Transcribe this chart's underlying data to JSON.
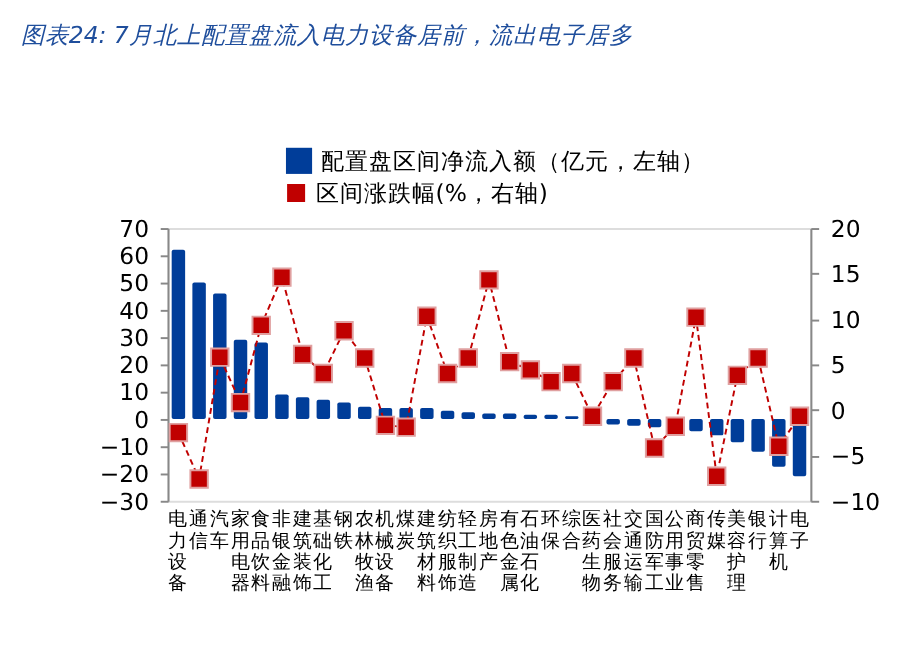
{
  "chart_data": {
    "type": "bar",
    "title": "图表24: 7月北上配置盘流入电力设备居前，流出电子居多",
    "categories": [
      "电力设备",
      "通信",
      "汽车",
      "家用电器",
      "食品饮料",
      "非银金融",
      "建筑装饰",
      "基础化工",
      "钢铁",
      "农林牧渔",
      "机械设备",
      "煤炭",
      "建筑材料",
      "纺织服饰",
      "轻工制造",
      "房地产",
      "有色金属",
      "石油石化",
      "环保",
      "综合",
      "医药生物",
      "社会服务",
      "交通运输",
      "国防军工",
      "公用事业",
      "商贸零售",
      "传媒",
      "美容护理",
      "银行",
      "计算机",
      "电子"
    ],
    "series": [
      {
        "name": "配置盘区间净流入额（亿元，左轴）",
        "color": "#003d99",
        "values": [
          62,
          50,
          46,
          29,
          28,
          9,
          8,
          7,
          6,
          4.5,
          4,
          4,
          4,
          3,
          2.5,
          2,
          2,
          1.5,
          1.5,
          1,
          null,
          -2,
          -2.5,
          -3,
          null,
          -4.5,
          -6,
          -8.5,
          -12,
          -17.5,
          -21
        ]
      },
      {
        "name": "区间涨跌幅(%，右轴)",
        "color": "#c00000",
        "type": "line",
        "axis": "y2",
        "marker": "square",
        "line_style": "dashed",
        "values": [
          -2.5,
          -7.6,
          5.8,
          0.8,
          9.3,
          14.6,
          6.1,
          4.0,
          8.7,
          5.7,
          -1.7,
          -1.9,
          10.3,
          4.0,
          5.7,
          14.3,
          5.3,
          4.4,
          3.1,
          4.0,
          -0.7,
          3.1,
          5.7,
          -4.2,
          -1.8,
          10.2,
          -7.3,
          3.8,
          5.7,
          -4.0,
          -0.7
        ]
      }
    ],
    "ylim": [
      -30,
      70
    ],
    "yticks": [
      -30,
      -20,
      -10,
      0,
      10,
      20,
      30,
      40,
      50,
      60,
      70
    ],
    "y2lim": [
      -10,
      20
    ],
    "y2ticks": [
      -10,
      -5,
      0,
      5,
      10,
      15,
      20
    ],
    "grid": false,
    "legend": "top"
  }
}
